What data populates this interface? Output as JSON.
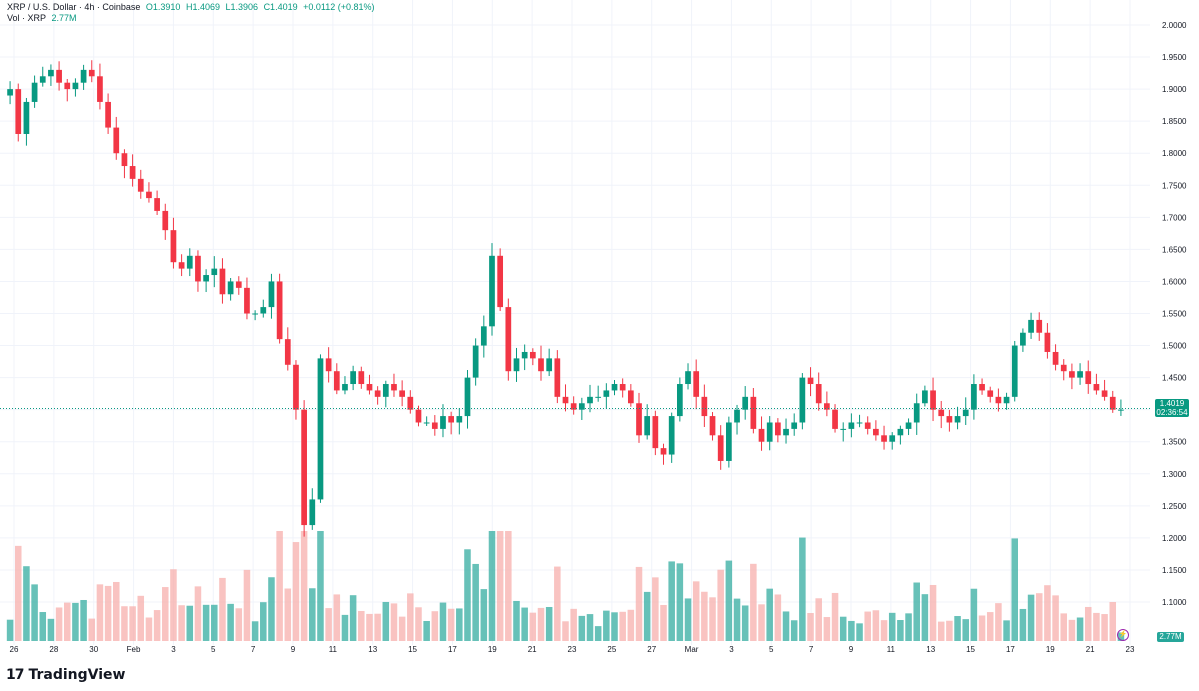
{
  "header": {
    "symbol": "XRP / U.S. Dollar · 4h · Coinbase",
    "open": "O1.3910",
    "high": "H1.4069",
    "low": "L1.3906",
    "close": "C1.4019",
    "change": "+0.0112 (+0.81%)",
    "vol_label": "Vol · XRP",
    "vol_value": "2.77M"
  },
  "last_price": {
    "price": "1.4019",
    "countdown": "02:36:54"
  },
  "volume_tag": "2.77M",
  "brand": {
    "name": "TradingView"
  },
  "colors": {
    "up": "#089981",
    "down": "#f23645",
    "up_vol": "#26a69a",
    "down_vol": "#f7a9a7",
    "grid": "#f0f3fa",
    "axis_text": "#131722"
  },
  "chart_data": {
    "type": "candlestick",
    "ylim": [
      1.0,
      2.0
    ],
    "y_ticks": [
      "2.0000",
      "1.9500",
      "1.9000",
      "1.8500",
      "1.8000",
      "1.7500",
      "1.7000",
      "1.6500",
      "1.6000",
      "1.5500",
      "1.5000",
      "1.4500",
      "1.4000",
      "1.3500",
      "1.3000",
      "1.2500",
      "1.2000",
      "1.1500",
      "1.1000"
    ],
    "x_ticks": [
      "26",
      "28",
      "30",
      "Feb",
      "3",
      "5",
      "7",
      "9",
      "11",
      "13",
      "15",
      "17",
      "19",
      "21",
      "23",
      "25",
      "27",
      "Mar",
      "3",
      "5",
      "7",
      "9",
      "11",
      "13",
      "15",
      "17",
      "19",
      "21",
      "23"
    ],
    "close_series": [
      1.9,
      1.83,
      1.88,
      1.91,
      1.92,
      1.93,
      1.91,
      1.9,
      1.91,
      1.93,
      1.92,
      1.88,
      1.84,
      1.8,
      1.78,
      1.76,
      1.74,
      1.73,
      1.71,
      1.68,
      1.63,
      1.62,
      1.64,
      1.6,
      1.61,
      1.62,
      1.58,
      1.6,
      1.59,
      1.55,
      1.55,
      1.56,
      1.6,
      1.51,
      1.47,
      1.4,
      1.22,
      1.26,
      1.48,
      1.46,
      1.43,
      1.44,
      1.46,
      1.44,
      1.43,
      1.42,
      1.44,
      1.43,
      1.42,
      1.4,
      1.38,
      1.38,
      1.37,
      1.39,
      1.38,
      1.39,
      1.45,
      1.5,
      1.53,
      1.64,
      1.56,
      1.46,
      1.48,
      1.49,
      1.48,
      1.46,
      1.48,
      1.42,
      1.41,
      1.4,
      1.41,
      1.42,
      1.42,
      1.43,
      1.44,
      1.43,
      1.41,
      1.36,
      1.39,
      1.34,
      1.33,
      1.39,
      1.44,
      1.46,
      1.42,
      1.39,
      1.36,
      1.32,
      1.38,
      1.4,
      1.42,
      1.37,
      1.35,
      1.38,
      1.36,
      1.37,
      1.38,
      1.45,
      1.44,
      1.41,
      1.4,
      1.37,
      1.37,
      1.38,
      1.38,
      1.37,
      1.36,
      1.35,
      1.36,
      1.37,
      1.38,
      1.41,
      1.43,
      1.4,
      1.39,
      1.38,
      1.39,
      1.4,
      1.44,
      1.43,
      1.42,
      1.41,
      1.42,
      1.5,
      1.52,
      1.54,
      1.52,
      1.49,
      1.47,
      1.46,
      1.45,
      1.46,
      1.44,
      1.43,
      1.42,
      1.4,
      1.4
    ],
    "volume_ratio_note": "",
    "last_price": 1.4019
  }
}
